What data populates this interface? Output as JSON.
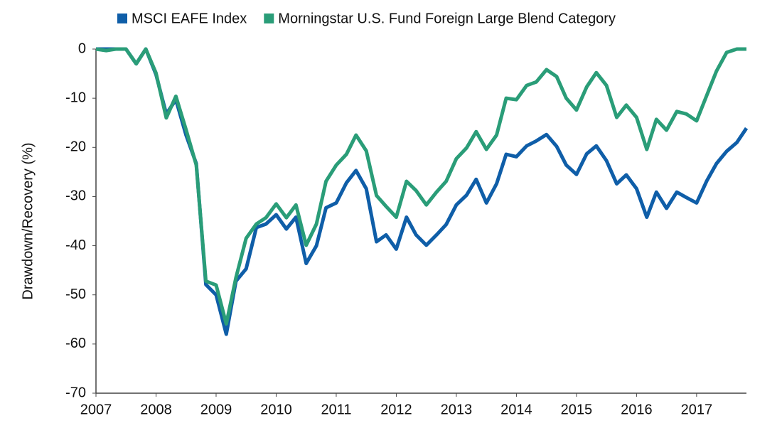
{
  "chart_data": {
    "type": "line",
    "y_label": "Drawdown/Recovery (%)",
    "x": [
      2007,
      2007.17,
      2007.33,
      2007.5,
      2007.67,
      2007.83,
      2008,
      2008.17,
      2008.33,
      2008.5,
      2008.67,
      2008.83,
      2009,
      2009.17,
      2009.33,
      2009.5,
      2009.67,
      2009.83,
      2010,
      2010.17,
      2010.33,
      2010.5,
      2010.67,
      2010.83,
      2011,
      2011.17,
      2011.33,
      2011.5,
      2011.67,
      2011.83,
      2012,
      2012.17,
      2012.33,
      2012.5,
      2012.67,
      2012.83,
      2013,
      2013.17,
      2013.33,
      2013.5,
      2013.67,
      2013.83,
      2014,
      2014.17,
      2014.33,
      2014.5,
      2014.67,
      2014.83,
      2015,
      2015.17,
      2015.33,
      2015.5,
      2015.67,
      2015.83,
      2016,
      2016.17,
      2016.33,
      2016.5,
      2016.67,
      2016.83,
      2017,
      2017.17,
      2017.33,
      2017.5,
      2017.67,
      2017.83
    ],
    "series": [
      {
        "name": "MSCI EAFE Index",
        "color": "#0f5ea8",
        "values": [
          0,
          0,
          0,
          0,
          -3,
          0,
          -5.2,
          -13.2,
          -10.3,
          -17.5,
          -23.3,
          -47.9,
          -50,
          -58,
          -47.2,
          -44.7,
          -36.3,
          -35.6,
          -33.7,
          -36.6,
          -34.2,
          -43.6,
          -40,
          -32.3,
          -31.3,
          -27.2,
          -24.7,
          -28.4,
          -39.2,
          -37.8,
          -40.7,
          -34.2,
          -37.8,
          -39.9,
          -37.8,
          -35.7,
          -31.7,
          -29.7,
          -26.5,
          -31.3,
          -27.4,
          -21.4,
          -21.9,
          -19.7,
          -18.7,
          -17.4,
          -19.8,
          -23.6,
          -25.5,
          -21.3,
          -19.7,
          -22.7,
          -27.4,
          -25.6,
          -28.4,
          -34.2,
          -29.1,
          -32.4,
          -29.1,
          -30.2,
          -31.3,
          -26.8,
          -23.3,
          -20.8,
          -19,
          -16.1
        ]
      },
      {
        "name": "Morningstar U.S. Fund Foreign Large Blend Category",
        "color": "#2a9d78",
        "values": [
          0,
          -0.3,
          0,
          0,
          -3,
          0,
          -4.9,
          -14,
          -9.6,
          -16.4,
          -23.6,
          -47.2,
          -48,
          -55.9,
          -46.5,
          -38.5,
          -35.6,
          -34.3,
          -31.5,
          -34.3,
          -31.7,
          -39.9,
          -35.6,
          -26.9,
          -23.6,
          -21.4,
          -17.5,
          -20.7,
          -29.8,
          -32,
          -34.2,
          -26.9,
          -28.8,
          -31.7,
          -29.1,
          -26.9,
          -22.3,
          -20.1,
          -16.8,
          -20.4,
          -17.5,
          -10,
          -10.3,
          -7.4,
          -6.7,
          -4.2,
          -5.6,
          -10,
          -12.4,
          -7.7,
          -4.8,
          -7.4,
          -13.9,
          -11.4,
          -13.9,
          -20.4,
          -14.3,
          -16.5,
          -12.7,
          -13.2,
          -14.6,
          -9.4,
          -4.5,
          -0.7,
          0,
          0
        ]
      }
    ],
    "xlim": [
      2007,
      2017.83
    ],
    "xticks": [
      2007,
      2008,
      2009,
      2010,
      2011,
      2012,
      2013,
      2014,
      2015,
      2016,
      2017
    ],
    "ylim": [
      -70,
      0
    ],
    "yticks": [
      0,
      -10,
      -20,
      -30,
      -40,
      -50,
      -60,
      -70
    ],
    "grid": false
  }
}
